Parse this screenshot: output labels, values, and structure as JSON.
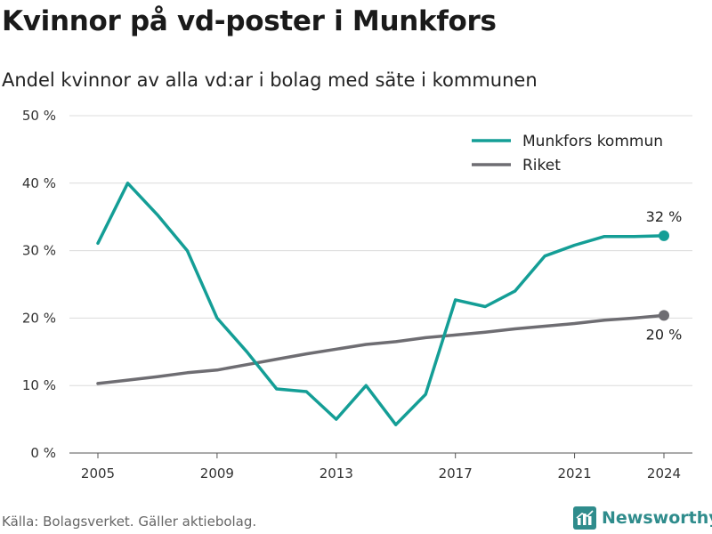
{
  "title": "Kvinnor på vd-poster i Munkfors",
  "subtitle": "Andel kvinnor av alla vd:ar i bolag med säte i kommunen",
  "source": "Källa: Bolagsverket. Gäller aktiebolag.",
  "brand": {
    "name": "Newsworthy",
    "icon": "bar-chart-logo-icon",
    "color": "#2f8c8c"
  },
  "chart_data": {
    "type": "line",
    "x": [
      2005,
      2006,
      2007,
      2008,
      2009,
      2010,
      2011,
      2012,
      2013,
      2014,
      2015,
      2016,
      2017,
      2018,
      2019,
      2020,
      2021,
      2022,
      2023,
      2024
    ],
    "xlim": [
      2005,
      2024
    ],
    "xticks": [
      2005,
      2009,
      2013,
      2017,
      2021,
      2024
    ],
    "ylim": [
      0,
      50
    ],
    "yticks": [
      0,
      10,
      20,
      30,
      40,
      50
    ],
    "ytick_labels": [
      "0 %",
      "10 %",
      "20 %",
      "30 %",
      "40 %",
      "50 %"
    ],
    "grid": true,
    "legend_position": "top-right",
    "series": [
      {
        "name": "Munkfors kommun",
        "color": "#149e96",
        "values": [
          31.1,
          40.0,
          35.3,
          30.0,
          20.0,
          15.0,
          9.5,
          9.1,
          5.0,
          10.0,
          4.2,
          8.7,
          22.7,
          21.7,
          24.0,
          29.2,
          30.8,
          32.1,
          32.1,
          32.2
        ],
        "end_label": "32 %"
      },
      {
        "name": "Riket",
        "color": "#6e6d72",
        "values": [
          10.3,
          10.8,
          11.3,
          11.9,
          12.3,
          13.1,
          13.9,
          14.7,
          15.4,
          16.1,
          16.5,
          17.1,
          17.5,
          17.9,
          18.4,
          18.8,
          19.2,
          19.7,
          20.0,
          20.4
        ],
        "end_label": "20 %"
      }
    ]
  }
}
